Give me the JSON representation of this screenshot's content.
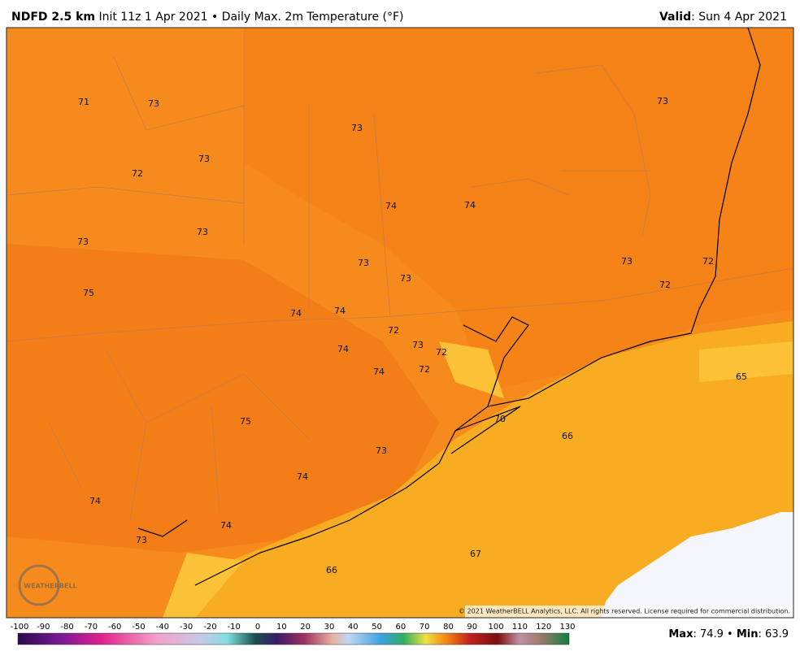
{
  "header": {
    "title_bold": "NDFD 2.5 km",
    "title_rest": "Init 11z 1 Apr 2021 • Daily Max. 2m Temperature (°F)",
    "valid_label": "Valid",
    "valid_value": ": Sun 4 Apr 2021"
  },
  "map": {
    "labels": [
      71,
      73,
      73,
      73,
      73,
      72,
      74,
      74,
      73,
      73,
      73,
      73,
      72,
      73,
      72,
      75,
      74,
      74,
      72,
      73,
      72,
      74,
      74,
      72,
      65,
      75,
      70,
      66,
      73,
      74,
      74,
      74,
      73,
      67,
      66
    ],
    "copyright": "© 2021 WeatherBELL Analytics, LLC. All rights reserved. License required for commercial distribution.",
    "logo": "WEATHERBELL"
  },
  "colorbar": {
    "ticks": [
      -100,
      -90,
      -80,
      -70,
      -60,
      -50,
      -40,
      -30,
      -20,
      -10,
      0,
      10,
      20,
      30,
      40,
      50,
      60,
      70,
      80,
      90,
      100,
      110,
      120,
      130
    ]
  },
  "stats": {
    "max_label": "Max",
    "max_value": ": 74.9 •",
    "min_label": "Min",
    "min_value": ": 63.9"
  }
}
